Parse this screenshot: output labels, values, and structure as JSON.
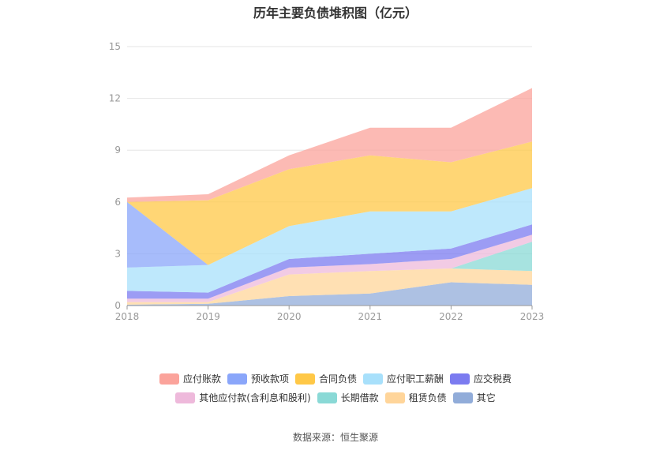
{
  "chart_data": {
    "type": "area",
    "stacked": true,
    "title": "历年主要负债堆积图（亿元）",
    "categories": [
      "2018",
      "2019",
      "2020",
      "2021",
      "2022",
      "2023"
    ],
    "ylim": [
      0,
      15
    ],
    "yticks": [
      0,
      3,
      6,
      9,
      12,
      15
    ],
    "grid": true,
    "legend_position": "bottom",
    "series": [
      {
        "name": "其它",
        "color": "#91acd9",
        "values": [
          0.05,
          0.1,
          0.55,
          0.7,
          1.35,
          1.2
        ]
      },
      {
        "name": "租赁负债",
        "color": "#ffd59a",
        "values": [
          0.15,
          0.1,
          1.25,
          1.3,
          0.8,
          0.8
        ]
      },
      {
        "name": "长期借款",
        "color": "#8ad9d6",
        "values": [
          0.0,
          0.0,
          0.0,
          0.0,
          0.0,
          1.7
        ]
      },
      {
        "name": "其他应付款(含利息和股利)",
        "color": "#eeb9db",
        "values": [
          0.2,
          0.2,
          0.4,
          0.4,
          0.55,
          0.4
        ]
      },
      {
        "name": "应交税费",
        "color": "#7b7bf0",
        "values": [
          0.45,
          0.35,
          0.5,
          0.6,
          0.6,
          0.6
        ]
      },
      {
        "name": "应付职工薪酬",
        "color": "#a8e0fb",
        "values": [
          1.35,
          1.6,
          1.9,
          2.45,
          2.15,
          2.1
        ]
      },
      {
        "name": "预收款项",
        "color": "#8aa6fa",
        "values": [
          3.8,
          0.0,
          0.0,
          0.0,
          0.0,
          0.0
        ]
      },
      {
        "name": "合同负债",
        "color": "#ffc847",
        "values": [
          0.0,
          3.75,
          3.3,
          3.25,
          2.85,
          2.7
        ]
      },
      {
        "name": "应付账款",
        "color": "#fba39b",
        "values": [
          0.25,
          0.35,
          0.8,
          1.6,
          2.0,
          3.1
        ]
      }
    ]
  },
  "legend": {
    "rows": [
      [
        {
          "label": "应付账款",
          "color": "#fba39b"
        },
        {
          "label": "预收款项",
          "color": "#8aa6fa"
        },
        {
          "label": "合同负债",
          "color": "#ffc847"
        },
        {
          "label": "应付职工薪酬",
          "color": "#a8e0fb"
        },
        {
          "label": "应交税费",
          "color": "#7b7bf0"
        }
      ],
      [
        {
          "label": "其他应付款(含利息和股利)",
          "color": "#eeb9db"
        },
        {
          "label": "长期借款",
          "color": "#8ad9d6"
        },
        {
          "label": "租赁负债",
          "color": "#ffd59a"
        },
        {
          "label": "其它",
          "color": "#91acd9"
        }
      ]
    ]
  },
  "source": "数据来源：恒生聚源"
}
